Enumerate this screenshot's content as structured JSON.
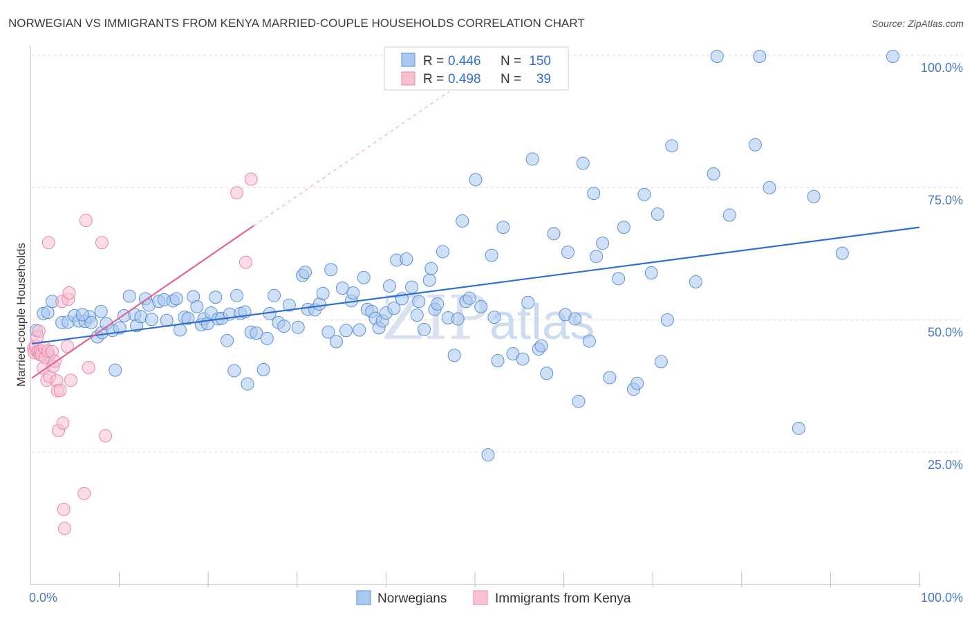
{
  "title": "NORWEGIAN VS IMMIGRANTS FROM KENYA MARRIED-COUPLE HOUSEHOLDS CORRELATION CHART",
  "source": "Source: ZipAtlas.com",
  "watermark": {
    "zip": "ZIP",
    "atlas": "atlas"
  },
  "legend": {
    "r_label": "R =",
    "n_label": "N =",
    "rows": [
      {
        "r": "0.446",
        "n": "150",
        "color": "#a9c8f0",
        "stroke": "#5b8fd6"
      },
      {
        "r": "0.498",
        "n": "39",
        "color": "#f9c0d2",
        "stroke": "#e887a8"
      }
    ]
  },
  "bottom_legend": [
    {
      "label": "Norwegians",
      "color": "#a9c8f0",
      "stroke": "#5b8fd6"
    },
    {
      "label": "Immigrants from Kenya",
      "color": "#f9c0d2",
      "stroke": "#e887a8"
    }
  ],
  "chart_data": {
    "type": "scatter",
    "title": "NORWEGIAN VS IMMIGRANTS FROM KENYA MARRIED-COUPLE HOUSEHOLDS CORRELATION CHART",
    "xlabel": "",
    "ylabel": "Married-couple Households",
    "xlim": [
      0,
      100
    ],
    "ylim": [
      0,
      100
    ],
    "x_tick_labels": [
      "0.0%",
      "100.0%"
    ],
    "y_tick_labels": [
      "25.0%",
      "50.0%",
      "75.0%",
      "100.0%"
    ],
    "y_ticks": [
      25,
      50,
      75,
      100
    ],
    "grid": "horizontal dashed",
    "legend_position": "top-center",
    "series": [
      {
        "name": "Norwegians",
        "color": "#a9c8f0",
        "stroke": "#5b8fd6",
        "line_color": "#2f6fd0",
        "trend": {
          "x": [
            0,
            100
          ],
          "y": [
            45.5,
            67.5
          ]
        },
        "points": [
          [
            0.5,
            48.0
          ],
          [
            0.6,
            44.0
          ],
          [
            1.3,
            51.2
          ],
          [
            1.8,
            51.4
          ],
          [
            2.3,
            53.5
          ],
          [
            3.4,
            49.5
          ],
          [
            4.1,
            49.6
          ],
          [
            4.8,
            50.8
          ],
          [
            5.3,
            49.8
          ],
          [
            6.0,
            49.7
          ],
          [
            6.5,
            50.6
          ],
          [
            6.7,
            49.5
          ],
          [
            7.4,
            46.8
          ],
          [
            7.8,
            51.6
          ],
          [
            7.9,
            47.6
          ],
          [
            8.4,
            49.3
          ],
          [
            9.1,
            48.0
          ],
          [
            9.4,
            40.5
          ],
          [
            9.9,
            48.5
          ],
          [
            10.4,
            50.8
          ],
          [
            11.0,
            54.5
          ],
          [
            11.6,
            51.0
          ],
          [
            11.8,
            48.9
          ],
          [
            12.3,
            50.6
          ],
          [
            12.8,
            54.0
          ],
          [
            13.2,
            52.8
          ],
          [
            13.5,
            50.1
          ],
          [
            14.3,
            53.5
          ],
          [
            14.9,
            53.8
          ],
          [
            15.2,
            49.9
          ],
          [
            15.9,
            53.6
          ],
          [
            16.3,
            54.0
          ],
          [
            16.7,
            48.1
          ],
          [
            17.2,
            50.5
          ],
          [
            17.6,
            50.3
          ],
          [
            18.2,
            54.4
          ],
          [
            18.6,
            52.5
          ],
          [
            19.1,
            49.1
          ],
          [
            19.4,
            50.2
          ],
          [
            19.8,
            49.3
          ],
          [
            20.2,
            51.3
          ],
          [
            20.7,
            54.3
          ],
          [
            21.0,
            50.2
          ],
          [
            21.4,
            50.3
          ],
          [
            22.0,
            46.1
          ],
          [
            22.3,
            51.1
          ],
          [
            22.8,
            40.4
          ],
          [
            23.1,
            54.6
          ],
          [
            23.5,
            51.2
          ],
          [
            24.0,
            51.5
          ],
          [
            24.3,
            37.9
          ],
          [
            24.7,
            47.7
          ],
          [
            25.3,
            47.5
          ],
          [
            26.1,
            40.6
          ],
          [
            26.5,
            46.5
          ],
          [
            26.8,
            51.2
          ],
          [
            27.3,
            54.6
          ],
          [
            27.8,
            49.5
          ],
          [
            28.4,
            48.8
          ],
          [
            29.0,
            52.8
          ],
          [
            30.0,
            48.6
          ],
          [
            30.5,
            58.4
          ],
          [
            30.8,
            59.0
          ],
          [
            31.1,
            52.0
          ],
          [
            31.9,
            51.9
          ],
          [
            32.4,
            53.0
          ],
          [
            32.8,
            55.0
          ],
          [
            33.4,
            47.7
          ],
          [
            33.7,
            59.5
          ],
          [
            34.3,
            45.9
          ],
          [
            35.0,
            56.0
          ],
          [
            35.4,
            48.0
          ],
          [
            36.0,
            53.6
          ],
          [
            36.2,
            55.1
          ],
          [
            36.9,
            48.1
          ],
          [
            37.4,
            58.0
          ],
          [
            37.8,
            52.0
          ],
          [
            38.3,
            51.6
          ],
          [
            38.7,
            50.3
          ],
          [
            39.1,
            48.5
          ],
          [
            39.5,
            49.8
          ],
          [
            39.9,
            51.3
          ],
          [
            40.3,
            56.4
          ],
          [
            40.8,
            52.2
          ],
          [
            41.1,
            61.3
          ],
          [
            41.7,
            54.0
          ],
          [
            42.2,
            61.5
          ],
          [
            42.8,
            56.2
          ],
          [
            43.4,
            50.9
          ],
          [
            43.6,
            53.5
          ],
          [
            44.2,
            48.2
          ],
          [
            44.8,
            57.5
          ],
          [
            45.0,
            59.7
          ],
          [
            45.4,
            52.0
          ],
          [
            45.7,
            53.0
          ],
          [
            46.3,
            62.9
          ],
          [
            46.9,
            50.4
          ],
          [
            47.6,
            43.3
          ],
          [
            48.0,
            50.2
          ],
          [
            48.5,
            68.7
          ],
          [
            48.9,
            53.5
          ],
          [
            49.3,
            54.1
          ],
          [
            50.0,
            76.5
          ],
          [
            50.6,
            52.5
          ],
          [
            51.4,
            24.5
          ],
          [
            51.8,
            62.2
          ],
          [
            52.1,
            50.5
          ],
          [
            52.5,
            42.3
          ],
          [
            53.1,
            67.5
          ],
          [
            54.2,
            43.6
          ],
          [
            55.3,
            42.6
          ],
          [
            55.9,
            53.3
          ],
          [
            56.4,
            80.4
          ],
          [
            57.1,
            44.5
          ],
          [
            57.4,
            45.1
          ],
          [
            58.0,
            39.9
          ],
          [
            58.8,
            66.3
          ],
          [
            60.1,
            51.0
          ],
          [
            60.4,
            62.8
          ],
          [
            61.2,
            50.2
          ],
          [
            61.6,
            34.6
          ],
          [
            62.1,
            79.6
          ],
          [
            62.8,
            46.0
          ],
          [
            63.3,
            73.9
          ],
          [
            63.6,
            62.0
          ],
          [
            64.3,
            64.5
          ],
          [
            65.1,
            39.1
          ],
          [
            66.1,
            57.8
          ],
          [
            66.7,
            67.5
          ],
          [
            67.8,
            36.9
          ],
          [
            68.2,
            38.0
          ],
          [
            69.0,
            73.7
          ],
          [
            69.8,
            58.9
          ],
          [
            70.5,
            70.0
          ],
          [
            70.9,
            42.1
          ],
          [
            71.6,
            50.0
          ],
          [
            72.1,
            82.9
          ],
          [
            74.8,
            57.2
          ],
          [
            76.8,
            77.6
          ],
          [
            78.6,
            69.8
          ],
          [
            81.5,
            83.1
          ],
          [
            83.1,
            75.0
          ],
          [
            86.4,
            29.5
          ],
          [
            88.1,
            73.3
          ],
          [
            91.3,
            62.6
          ],
          [
            97.0,
            99.8
          ],
          [
            77.2,
            99.8
          ],
          [
            82.0,
            99.8
          ],
          [
            1.9,
            43.3
          ],
          [
            5.7,
            51.0
          ]
        ]
      },
      {
        "name": "Immigrants from Kenya",
        "color": "#f9c0d2",
        "stroke": "#e887a8",
        "line_color": "#e3648f",
        "trend": {
          "x": [
            0,
            25
          ],
          "y": [
            39.0,
            67.8
          ]
        },
        "points": [
          [
            0.2,
            44.6
          ],
          [
            0.3,
            43.8
          ],
          [
            0.4,
            45.1
          ],
          [
            0.6,
            46.8
          ],
          [
            0.7,
            44.0
          ],
          [
            0.8,
            47.9
          ],
          [
            0.9,
            43.5
          ],
          [
            1.0,
            44.2
          ],
          [
            1.1,
            43.4
          ],
          [
            1.3,
            40.9
          ],
          [
            1.4,
            44.8
          ],
          [
            1.5,
            42.9
          ],
          [
            1.7,
            38.6
          ],
          [
            1.8,
            44.1
          ],
          [
            1.9,
            64.6
          ],
          [
            2.0,
            39.3
          ],
          [
            2.3,
            44.0
          ],
          [
            2.4,
            41.2
          ],
          [
            2.6,
            42.2
          ],
          [
            2.8,
            38.5
          ],
          [
            2.9,
            36.6
          ],
          [
            3.0,
            29.1
          ],
          [
            3.2,
            36.7
          ],
          [
            3.4,
            53.5
          ],
          [
            3.5,
            30.5
          ],
          [
            3.6,
            14.2
          ],
          [
            3.7,
            10.6
          ],
          [
            4.0,
            45.0
          ],
          [
            4.1,
            53.9
          ],
          [
            4.2,
            55.1
          ],
          [
            4.4,
            38.6
          ],
          [
            5.9,
            17.2
          ],
          [
            6.1,
            68.8
          ],
          [
            6.4,
            41.0
          ],
          [
            7.9,
            64.6
          ],
          [
            8.3,
            28.1
          ],
          [
            23.1,
            74.0
          ],
          [
            24.1,
            60.9
          ],
          [
            24.7,
            76.6
          ]
        ]
      }
    ]
  }
}
